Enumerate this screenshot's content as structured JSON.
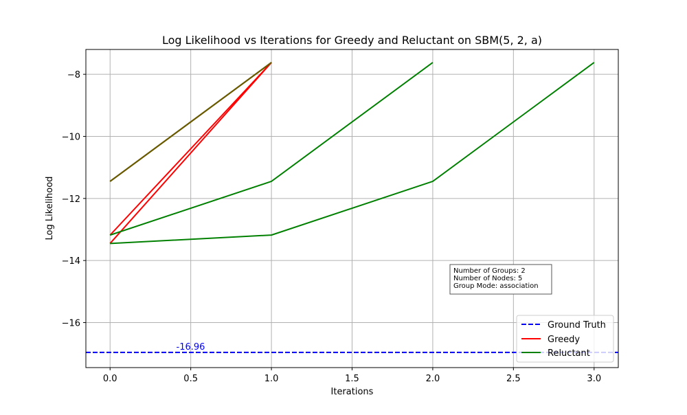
{
  "chart_data": {
    "type": "line",
    "title": "Log Likelihood vs Iterations for Greedy and Reluctant on SBM(5, 2, a)",
    "xlabel": "Iterations",
    "ylabel": "Log Likelihood",
    "xlim": [
      -0.15,
      3.15
    ],
    "ylim": [
      -17.45,
      -7.2
    ],
    "xticks": [
      0.0,
      0.5,
      1.0,
      1.5,
      2.0,
      2.5,
      3.0
    ],
    "xtick_labels": [
      "0.0",
      "0.5",
      "1.0",
      "1.5",
      "2.0",
      "2.5",
      "3.0"
    ],
    "yticks": [
      -16,
      -14,
      -12,
      -10,
      -8
    ],
    "ytick_labels": [
      "−16",
      "−14",
      "−12",
      "−10",
      "−8"
    ],
    "grid": true,
    "ground_truth": {
      "y": -16.96,
      "label": "-16.96",
      "color": "#0000ff"
    },
    "series": [
      {
        "name": "Ground Truth",
        "color": "#0000ff",
        "style": "dashed",
        "legend": true,
        "lines": []
      },
      {
        "name": "Greedy",
        "color": "#ff0000",
        "style": "solid",
        "legend": true,
        "lines": [
          {
            "x": [
              0,
              1
            ],
            "y": [
              -13.45,
              -7.62
            ]
          },
          {
            "x": [
              0,
              1
            ],
            "y": [
              -13.18,
              -7.62
            ]
          },
          {
            "x": [
              0,
              1
            ],
            "y": [
              -11.45,
              -7.62
            ]
          }
        ]
      },
      {
        "name": "Reluctant",
        "color": "#008000",
        "style": "solid",
        "legend": true,
        "lines": [
          {
            "x": [
              0,
              1
            ],
            "y": [
              -11.45,
              -7.62
            ]
          },
          {
            "x": [
              0,
              1,
              2
            ],
            "y": [
              -13.18,
              -11.45,
              -7.62
            ]
          },
          {
            "x": [
              0,
              1,
              2,
              3
            ],
            "y": [
              -13.45,
              -13.18,
              -11.45,
              -7.62
            ]
          }
        ]
      }
    ],
    "overlap_color": "#6b5a00",
    "legend_position": "lower right",
    "info_box": [
      "Number of Groups: 2",
      "Number of Nodes: 5",
      "Group Mode: association"
    ]
  }
}
